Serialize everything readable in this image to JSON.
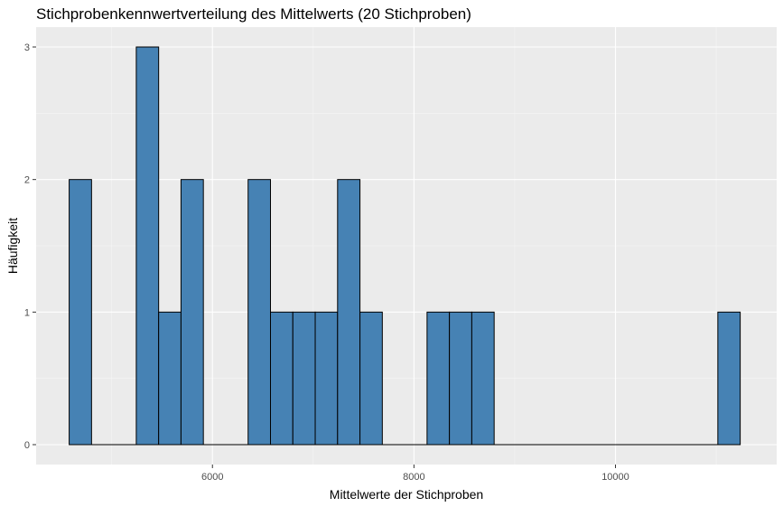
{
  "chart_data": {
    "type": "bar",
    "title": "Stichprobenkennwertverteilung des Mittelwerts (20 Stichproben)",
    "xlabel": "Mittelwerte der Stichproben",
    "ylabel": "Häufigkeit",
    "xlim": [
      4250,
      11600
    ],
    "ylim": [
      -0.15,
      3.15
    ],
    "bin_width": 222,
    "x_ticks": [
      6000,
      8000,
      10000
    ],
    "x_tick_labels": [
      "6000",
      "8000",
      "10000"
    ],
    "y_ticks": [
      0,
      1,
      2,
      3
    ],
    "y_tick_labels": [
      "0",
      "1",
      "2",
      "3"
    ],
    "grid": true,
    "bins": [
      {
        "x_start": 4578,
        "x_end": 4800,
        "count": 2
      },
      {
        "x_start": 4800,
        "x_end": 5022,
        "count": 0
      },
      {
        "x_start": 5022,
        "x_end": 5244,
        "count": 0
      },
      {
        "x_start": 5244,
        "x_end": 5466,
        "count": 3
      },
      {
        "x_start": 5466,
        "x_end": 5688,
        "count": 1
      },
      {
        "x_start": 5688,
        "x_end": 5910,
        "count": 2
      },
      {
        "x_start": 5910,
        "x_end": 6132,
        "count": 0
      },
      {
        "x_start": 6132,
        "x_end": 6354,
        "count": 0
      },
      {
        "x_start": 6354,
        "x_end": 6576,
        "count": 2
      },
      {
        "x_start": 6576,
        "x_end": 6798,
        "count": 1
      },
      {
        "x_start": 6798,
        "x_end": 7020,
        "count": 1
      },
      {
        "x_start": 7020,
        "x_end": 7242,
        "count": 1
      },
      {
        "x_start": 7242,
        "x_end": 7464,
        "count": 2
      },
      {
        "x_start": 7464,
        "x_end": 7686,
        "count": 1
      },
      {
        "x_start": 7686,
        "x_end": 7908,
        "count": 0
      },
      {
        "x_start": 7908,
        "x_end": 8130,
        "count": 0
      },
      {
        "x_start": 8130,
        "x_end": 8352,
        "count": 1
      },
      {
        "x_start": 8352,
        "x_end": 8574,
        "count": 1
      },
      {
        "x_start": 8574,
        "x_end": 8796,
        "count": 1
      },
      {
        "x_start": 8796,
        "x_end": 9018,
        "count": 0
      },
      {
        "x_start": 9018,
        "x_end": 9240,
        "count": 0
      },
      {
        "x_start": 9240,
        "x_end": 9462,
        "count": 0
      },
      {
        "x_start": 9462,
        "x_end": 9684,
        "count": 0
      },
      {
        "x_start": 9684,
        "x_end": 9906,
        "count": 0
      },
      {
        "x_start": 9906,
        "x_end": 10128,
        "count": 0
      },
      {
        "x_start": 10128,
        "x_end": 10350,
        "count": 0
      },
      {
        "x_start": 10350,
        "x_end": 10572,
        "count": 0
      },
      {
        "x_start": 10572,
        "x_end": 10794,
        "count": 0
      },
      {
        "x_start": 10794,
        "x_end": 11016,
        "count": 0
      },
      {
        "x_start": 11016,
        "x_end": 11238,
        "count": 1
      }
    ],
    "colors": {
      "bar_fill": "#4682B4",
      "bar_stroke": "#000000",
      "panel_background": "#EBEBEB",
      "grid_major": "#FFFFFF",
      "grid_minor": "#F5F5F5"
    }
  }
}
